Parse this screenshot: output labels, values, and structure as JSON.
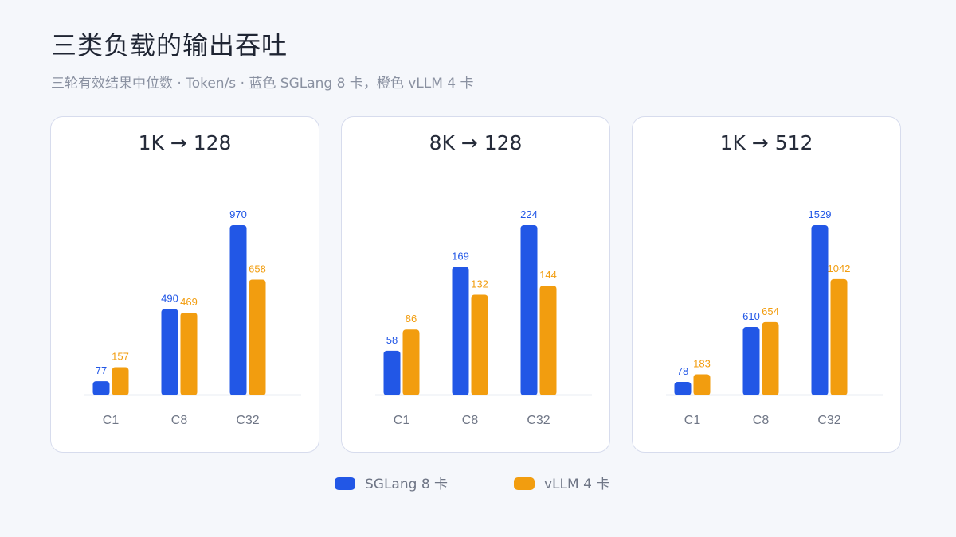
{
  "header": {
    "title": "三类负载的输出吞吐",
    "subtitle": "三轮有效结果中位数 · Token/s · 蓝色 SGLang 8 卡，橙色 vLLM 4 卡"
  },
  "colors": {
    "sglang": "#2257e6",
    "vllm": "#f29d0f",
    "axis": "#d5dae8",
    "tick": "#6f7686"
  },
  "legend": [
    {
      "label": "SGLang 8 卡",
      "color": "#2257e6"
    },
    {
      "label": "vLLM 4 卡",
      "color": "#f29d0f"
    }
  ],
  "chart_data": [
    {
      "type": "bar",
      "title": "1K → 128",
      "categories": [
        "C1",
        "C8",
        "C32"
      ],
      "series": [
        {
          "name": "SGLang 8 卡",
          "values": [
            77,
            490,
            970
          ]
        },
        {
          "name": "vLLM 4 卡",
          "values": [
            157,
            469,
            658
          ]
        }
      ]
    },
    {
      "type": "bar",
      "title": "8K → 128",
      "categories": [
        "C1",
        "C8",
        "C32"
      ],
      "series": [
        {
          "name": "SGLang 8 卡",
          "values": [
            58,
            169,
            224
          ]
        },
        {
          "name": "vLLM 4 卡",
          "values": [
            86,
            132,
            144
          ]
        }
      ]
    },
    {
      "type": "bar",
      "title": "1K → 512",
      "categories": [
        "C1",
        "C8",
        "C32"
      ],
      "series": [
        {
          "name": "SGLang 8 卡",
          "values": [
            78,
            610,
            1529
          ]
        },
        {
          "name": "vLLM 4 卡",
          "values": [
            183,
            654,
            1042
          ]
        }
      ]
    }
  ]
}
